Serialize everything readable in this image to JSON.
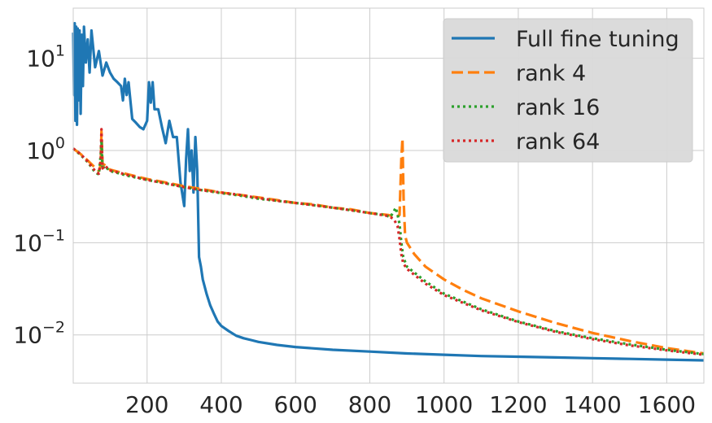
{
  "chart_data": {
    "type": "line",
    "title": "",
    "xlabel": "",
    "ylabel": "",
    "xlim": [
      1,
      1700
    ],
    "ylim": [
      0.003,
      35
    ],
    "yscale": "log",
    "grid": true,
    "legend_position": "top-right",
    "x_ticks": [
      200,
      400,
      600,
      800,
      1000,
      1200,
      1400,
      1600
    ],
    "x_tick_labels": [
      "200",
      "400",
      "600",
      "800",
      "1000",
      "1200",
      "1400",
      "1600"
    ],
    "y_ticks": [
      {
        "value": 10,
        "base": "10",
        "exp": "1"
      },
      {
        "value": 1,
        "base": "10",
        "exp": "0"
      },
      {
        "value": 0.1,
        "base": "10",
        "exp": "−1"
      },
      {
        "value": 0.01,
        "base": "10",
        "exp": "−2"
      }
    ],
    "series": [
      {
        "name": "Full fine tuning",
        "color": "#1f77b4",
        "style": "solid",
        "x": [
          1,
          3,
          5,
          7,
          9,
          11,
          13,
          15,
          18,
          21,
          24,
          27,
          30,
          35,
          40,
          45,
          50,
          60,
          70,
          80,
          90,
          100,
          110,
          120,
          130,
          135,
          140,
          145,
          150,
          160,
          170,
          180,
          190,
          200,
          205,
          210,
          215,
          220,
          230,
          240,
          250,
          260,
          270,
          280,
          290,
          300,
          305,
          310,
          315,
          320,
          325,
          330,
          335,
          340,
          345,
          350,
          360,
          370,
          380,
          390,
          400,
          420,
          440,
          460,
          480,
          500,
          550,
          600,
          700,
          800,
          900,
          1000,
          1100,
          1200,
          1300,
          1400,
          1500,
          1600,
          1700
        ],
        "y": [
          19,
          4,
          24,
          2.1,
          22,
          1.9,
          21,
          3.5,
          20,
          2.5,
          18,
          5,
          22,
          9,
          16,
          7,
          20,
          8,
          12,
          6.5,
          9,
          7,
          6,
          5.5,
          5,
          3.5,
          6,
          4,
          5.5,
          2.2,
          2.0,
          1.8,
          1.7,
          2.1,
          5.5,
          3.3,
          5.5,
          2.8,
          2.8,
          1.8,
          1.2,
          2.1,
          1.4,
          1.4,
          0.45,
          0.25,
          0.8,
          1.7,
          0.6,
          1.0,
          0.35,
          1.4,
          0.6,
          0.07,
          0.055,
          0.04,
          0.028,
          0.021,
          0.017,
          0.014,
          0.0125,
          0.011,
          0.0098,
          0.0092,
          0.0088,
          0.0084,
          0.0078,
          0.0074,
          0.0069,
          0.0066,
          0.0063,
          0.0061,
          0.0059,
          0.0058,
          0.0057,
          0.0056,
          0.0055,
          0.0054,
          0.0053
        ]
      },
      {
        "name": "rank 4",
        "color": "#ff7f0e",
        "style": "dashed",
        "x": [
          1,
          20,
          40,
          60,
          70,
          75,
          77,
          80,
          85,
          100,
          150,
          200,
          250,
          300,
          350,
          400,
          450,
          500,
          550,
          600,
          650,
          700,
          750,
          800,
          850,
          870,
          880,
          885,
          888,
          891,
          895,
          900,
          920,
          950,
          1000,
          1050,
          1100,
          1200,
          1300,
          1400,
          1500,
          1600,
          1700
        ],
        "y": [
          1.05,
          0.92,
          0.78,
          0.65,
          0.6,
          0.7,
          1.6,
          0.72,
          0.7,
          0.62,
          0.55,
          0.49,
          0.45,
          0.41,
          0.38,
          0.35,
          0.33,
          0.31,
          0.29,
          0.27,
          0.26,
          0.24,
          0.23,
          0.21,
          0.2,
          0.19,
          0.2,
          0.8,
          1.35,
          0.3,
          0.12,
          0.1,
          0.075,
          0.055,
          0.04,
          0.031,
          0.025,
          0.018,
          0.0135,
          0.0105,
          0.0086,
          0.0072,
          0.0063
        ]
      },
      {
        "name": "rank 16",
        "color": "#2ca02c",
        "style": "dotted",
        "x": [
          1,
          20,
          40,
          60,
          70,
          75,
          77,
          80,
          85,
          100,
          150,
          200,
          250,
          300,
          350,
          400,
          450,
          500,
          550,
          600,
          650,
          700,
          750,
          800,
          840,
          855,
          865,
          870,
          875,
          880,
          885,
          890,
          900,
          950,
          1000,
          1100,
          1200,
          1300,
          1400,
          1500,
          1600,
          1700
        ],
        "y": [
          1.05,
          0.9,
          0.75,
          0.58,
          0.55,
          0.9,
          1.3,
          0.62,
          0.68,
          0.6,
          0.53,
          0.48,
          0.44,
          0.4,
          0.37,
          0.345,
          0.325,
          0.3,
          0.285,
          0.27,
          0.255,
          0.24,
          0.225,
          0.21,
          0.2,
          0.19,
          0.22,
          0.24,
          0.2,
          0.16,
          0.1,
          0.07,
          0.055,
          0.038,
          0.028,
          0.019,
          0.014,
          0.011,
          0.0092,
          0.0079,
          0.0069,
          0.0062
        ]
      },
      {
        "name": "rank 64",
        "color": "#d62728",
        "style": "dotted",
        "x": [
          1,
          20,
          40,
          60,
          70,
          75,
          77,
          80,
          85,
          100,
          150,
          200,
          250,
          300,
          350,
          400,
          450,
          500,
          550,
          600,
          650,
          700,
          750,
          800,
          850,
          865,
          875,
          880,
          885,
          890,
          900,
          950,
          1000,
          1100,
          1200,
          1300,
          1400,
          1500,
          1600,
          1700
        ],
        "y": [
          1.05,
          0.92,
          0.76,
          0.6,
          0.56,
          0.8,
          1.7,
          0.64,
          0.69,
          0.61,
          0.54,
          0.48,
          0.44,
          0.4,
          0.37,
          0.35,
          0.33,
          0.305,
          0.285,
          0.27,
          0.255,
          0.24,
          0.225,
          0.21,
          0.195,
          0.18,
          0.15,
          0.11,
          0.075,
          0.06,
          0.052,
          0.036,
          0.027,
          0.0185,
          0.0138,
          0.0108,
          0.009,
          0.0077,
          0.0068,
          0.0061
        ]
      }
    ]
  }
}
